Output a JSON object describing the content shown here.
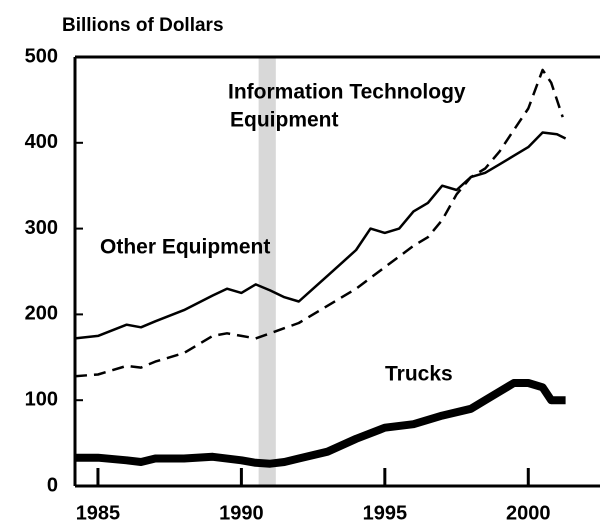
{
  "chart_data": {
    "type": "line",
    "y_axis_label": "Billions of Dollars",
    "xlim": [
      1984.2,
      2002.5
    ],
    "xticks": [
      1985,
      1990,
      1995,
      2000
    ],
    "ylim": [
      0,
      500
    ],
    "yticks": [
      0,
      100,
      200,
      300,
      400,
      500
    ],
    "recession_band": [
      1990.6,
      1991.2
    ],
    "series": [
      {
        "name": "Other Equipment",
        "color": "#000000",
        "style": "solid",
        "width": 2.5,
        "x": [
          1984.2,
          1985,
          1986,
          1986.5,
          1987,
          1988,
          1989,
          1989.5,
          1990,
          1990.5,
          1991,
          1991.5,
          1992,
          1992.5,
          1993,
          1993.5,
          1994,
          1994.5,
          1995,
          1995.5,
          1996,
          1996.5,
          1997,
          1997.5,
          1998,
          1998.5,
          1999,
          1999.5,
          2000,
          2000.5,
          2001,
          2001.3
        ],
        "values": [
          172,
          175,
          188,
          185,
          192,
          205,
          222,
          230,
          225,
          235,
          228,
          220,
          215,
          230,
          245,
          260,
          275,
          300,
          295,
          300,
          320,
          330,
          350,
          345,
          360,
          365,
          375,
          385,
          395,
          412,
          410,
          405
        ]
      },
      {
        "name": "Information Technology Equipment",
        "label_lines": [
          "Information Technology",
          "Equipment"
        ],
        "color": "#000000",
        "style": "dashed",
        "width": 2.5,
        "x": [
          1984.2,
          1985,
          1986,
          1986.5,
          1987,
          1988,
          1989,
          1989.5,
          1990,
          1990.5,
          1991,
          1992,
          1993,
          1994,
          1995,
          1996,
          1996.5,
          1997,
          1997.5,
          1998,
          1998.5,
          1999,
          1999.5,
          2000,
          2000.5,
          2000.8,
          2001.2
        ],
        "values": [
          128,
          130,
          140,
          138,
          145,
          155,
          175,
          178,
          175,
          172,
          178,
          190,
          210,
          230,
          255,
          280,
          290,
          310,
          340,
          360,
          370,
          390,
          415,
          440,
          485,
          470,
          430
        ]
      },
      {
        "name": "Trucks",
        "color": "#000000",
        "style": "solid",
        "width": 8,
        "x": [
          1984.2,
          1985,
          1986,
          1986.5,
          1987,
          1988,
          1989,
          1990,
          1990.5,
          1991,
          1991.5,
          1992,
          1993,
          1994,
          1995,
          1996,
          1997,
          1998,
          1998.5,
          1999,
          1999.5,
          2000,
          2000.5,
          2000.8,
          2001.3
        ],
        "values": [
          33,
          33,
          30,
          28,
          32,
          32,
          34,
          30,
          27,
          26,
          28,
          32,
          40,
          55,
          68,
          72,
          82,
          90,
          100,
          110,
          120,
          120,
          115,
          100,
          100
        ]
      }
    ]
  }
}
